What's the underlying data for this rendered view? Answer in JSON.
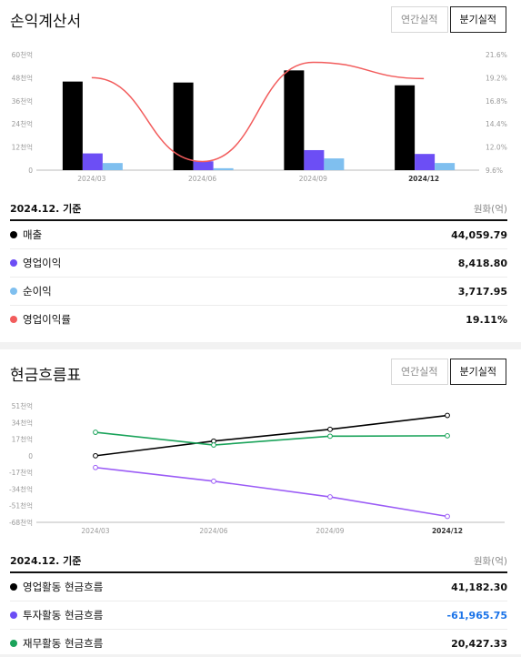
{
  "income": {
    "title": "손익계산서",
    "toggle": [
      "연간실적",
      "분기실적"
    ],
    "active_toggle": 1,
    "summary_base": "2024.12. 기준",
    "summary_unit": "원화(억)",
    "rows": [
      {
        "label": "매출",
        "value": "44,059.79",
        "color": "#000000"
      },
      {
        "label": "영업이익",
        "value": "8,418.80",
        "color": "#6c4ef5"
      },
      {
        "label": "순이익",
        "value": "3,717.95",
        "color": "#7fbfef"
      },
      {
        "label": "영업이익률",
        "value": "19.11%",
        "color": "#f25c5c"
      }
    ],
    "chart_data": {
      "type": "bar",
      "categories": [
        "2024/03",
        "2024/06",
        "2024/09",
        "2024/12"
      ],
      "series": [
        {
          "name": "매출",
          "values": [
            46000,
            45500,
            51800,
            44060
          ],
          "color": "#000000"
        },
        {
          "name": "영업이익",
          "values": [
            8700,
            4600,
            10400,
            8420
          ],
          "color": "#6c4ef5"
        },
        {
          "name": "순이익",
          "values": [
            3700,
            1000,
            6100,
            3720
          ],
          "color": "#7fbfef"
        },
        {
          "name": "영업이익률",
          "values": [
            19.2,
            10.5,
            20.8,
            19.11
          ],
          "color": "#f25c5c",
          "axis": "right",
          "kind": "line"
        }
      ],
      "y_ticks_left": [
        "0",
        "12천억",
        "24천억",
        "36천억",
        "48천억",
        "60천억"
      ],
      "y_ticks_right": [
        "9.6%",
        "12.0%",
        "14.4%",
        "16.8%",
        "19.2%",
        "21.6%"
      ],
      "ylim": [
        0,
        60000
      ],
      "ylim_right": [
        9.6,
        21.6
      ],
      "highlight_category": "2024/12"
    }
  },
  "cashflow": {
    "title": "현금흐름표",
    "toggle": [
      "연간실적",
      "분기실적"
    ],
    "active_toggle": 1,
    "summary_base": "2024.12. 기준",
    "summary_unit": "원화(억)",
    "rows": [
      {
        "label": "영업활동 현금흐름",
        "value": "41,182.30",
        "color": "#000000",
        "negative": false
      },
      {
        "label": "투자활동 현금흐름",
        "value": "-61,965.75",
        "color": "#6c4ef5",
        "negative": true
      },
      {
        "label": "재무활동 현금흐름",
        "value": "20,427.33",
        "color": "#1aa35a",
        "negative": false
      }
    ],
    "chart_data": {
      "type": "line",
      "categories": [
        "2024/03",
        "2024/06",
        "2024/09",
        "2024/12"
      ],
      "series": [
        {
          "name": "영업활동 현금흐름",
          "values": [
            0,
            15000,
            27000,
            41182
          ],
          "color": "#000000"
        },
        {
          "name": "투자활동 현금흐름",
          "values": [
            -12000,
            -26000,
            -42000,
            -61966
          ],
          "color": "#9b5cf6"
        },
        {
          "name": "재무활동 현금흐름",
          "values": [
            24000,
            11000,
            20000,
            20427
          ],
          "color": "#1aa35a"
        }
      ],
      "y_ticks": [
        "-68천억",
        "-51천억",
        "-34천억",
        "-17천억",
        "0",
        "17천억",
        "34천억",
        "51천억"
      ],
      "ylim": [
        -68000,
        51000
      ],
      "highlight_category": "2024/12"
    }
  }
}
